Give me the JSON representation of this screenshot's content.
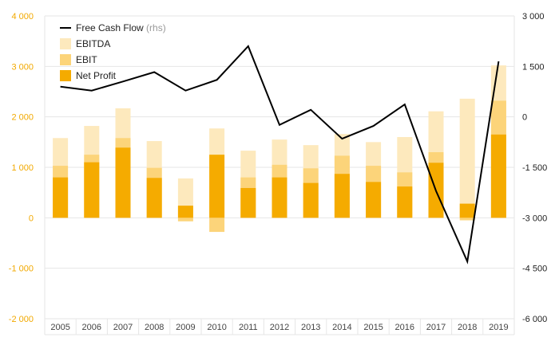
{
  "chart_data": {
    "type": "bar",
    "categories": [
      "2005",
      "2006",
      "2007",
      "2008",
      "2009",
      "2010",
      "2011",
      "2012",
      "2013",
      "2014",
      "2015",
      "2016",
      "2017",
      "2018",
      "2019"
    ],
    "series": [
      {
        "name": "EBITDA",
        "color": "#fde9bd",
        "values": [
          1580,
          1820,
          2170,
          1520,
          780,
          1770,
          1330,
          1550,
          1440,
          1660,
          1500,
          1600,
          2110,
          2360,
          3020
        ]
      },
      {
        "name": "EBIT",
        "color": "#fcd47a",
        "values": [
          1030,
          1250,
          1580,
          990,
          -70,
          -280,
          800,
          1050,
          980,
          1230,
          1030,
          900,
          1300,
          -50,
          2320
        ]
      },
      {
        "name": "Net Profit",
        "color": "#f5ab00",
        "values": [
          800,
          1100,
          1390,
          790,
          240,
          1250,
          590,
          800,
          690,
          870,
          710,
          620,
          1090,
          280,
          1650
        ]
      },
      {
        "name": "Free Cash Flow",
        "note": "(rhs)",
        "type": "line",
        "axis": "right",
        "color": "#000000",
        "values": [
          900,
          780,
          1050,
          1330,
          780,
          1100,
          2100,
          -240,
          210,
          -650,
          -270,
          370,
          -2200,
          -4300,
          1650
        ]
      }
    ],
    "y_left": {
      "ylim": [
        -2000,
        4000
      ],
      "ticks": [
        -2000,
        -1000,
        0,
        1000,
        2000,
        3000,
        4000
      ],
      "tick_labels": [
        "-2 000",
        "-1 000",
        "0",
        "1 000",
        "2 000",
        "3 000",
        "4 000"
      ]
    },
    "y_right": {
      "ylim": [
        -6000,
        3000
      ],
      "ticks": [
        -6000,
        -4500,
        -3000,
        -1500,
        0,
        1500,
        3000
      ],
      "tick_labels": [
        "-6 000",
        "-4 500",
        "-3 000",
        "-1 500",
        "0",
        "1 500",
        "3 000"
      ]
    },
    "grid": true,
    "legend": {
      "placement": "top-left",
      "items": [
        {
          "label": "Free Cash Flow",
          "note": "(rhs)",
          "kind": "line",
          "color": "#000000"
        },
        {
          "label": "EBITDA",
          "kind": "box",
          "color": "#fde9bd"
        },
        {
          "label": "EBIT",
          "kind": "box",
          "color": "#fcd47a"
        },
        {
          "label": "Net Profit",
          "kind": "box",
          "color": "#f5ab00"
        }
      ]
    },
    "colors": {
      "left_axis": "#f2a900",
      "right_axis": "#222222",
      "grid": "#e6e6e6"
    }
  }
}
